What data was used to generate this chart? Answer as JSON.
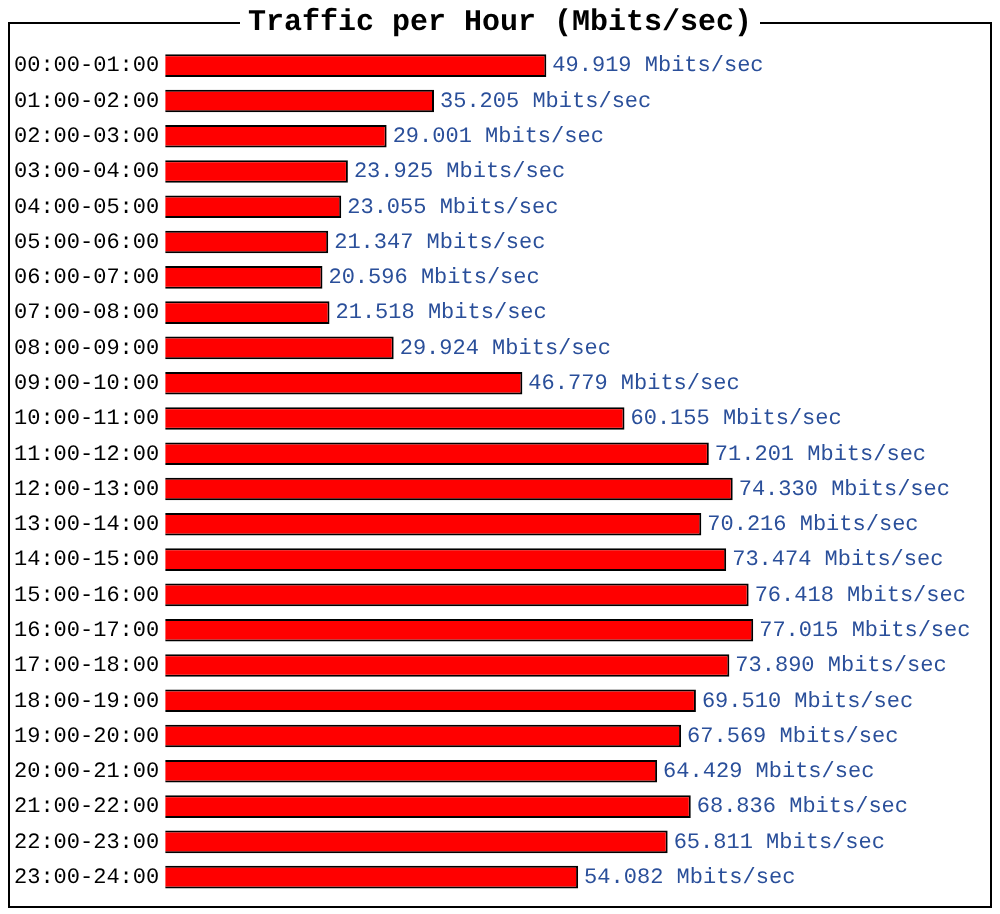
{
  "chart_data": {
    "type": "bar",
    "orientation": "horizontal",
    "title": "Traffic per Hour (Mbits/sec)",
    "categories": [
      "00:00-01:00",
      "01:00-02:00",
      "02:00-03:00",
      "03:00-04:00",
      "04:00-05:00",
      "05:00-06:00",
      "06:00-07:00",
      "07:00-08:00",
      "08:00-09:00",
      "09:00-10:00",
      "10:00-11:00",
      "11:00-12:00",
      "12:00-13:00",
      "13:00-14:00",
      "14:00-15:00",
      "15:00-16:00",
      "16:00-17:00",
      "17:00-18:00",
      "18:00-19:00",
      "19:00-20:00",
      "20:00-21:00",
      "21:00-22:00",
      "22:00-23:00",
      "23:00-24:00"
    ],
    "values": [
      49.919,
      35.205,
      29.001,
      23.925,
      23.055,
      21.347,
      20.596,
      21.518,
      29.924,
      46.779,
      60.155,
      71.201,
      74.33,
      70.216,
      73.474,
      76.418,
      77.015,
      73.89,
      69.51,
      67.569,
      64.429,
      68.836,
      65.811,
      54.082
    ],
    "value_labels": [
      "49.919 Mbits/sec",
      "35.205 Mbits/sec",
      "29.001 Mbits/sec",
      "23.925 Mbits/sec",
      "23.055 Mbits/sec",
      "21.347 Mbits/sec",
      "20.596 Mbits/sec",
      "21.518 Mbits/sec",
      "29.924 Mbits/sec",
      "46.779 Mbits/sec",
      "60.155 Mbits/sec",
      "71.201 Mbits/sec",
      "74.330 Mbits/sec",
      "70.216 Mbits/sec",
      "73.474 Mbits/sec",
      "76.418 Mbits/sec",
      "77.015 Mbits/sec",
      "73.890 Mbits/sec",
      "69.510 Mbits/sec",
      "67.569 Mbits/sec",
      "64.429 Mbits/sec",
      "68.836 Mbits/sec",
      "65.811 Mbits/sec",
      "54.082 Mbits/sec"
    ],
    "color": "#ff0000",
    "tick_labels": "y",
    "grid": false,
    "legend": false
  }
}
